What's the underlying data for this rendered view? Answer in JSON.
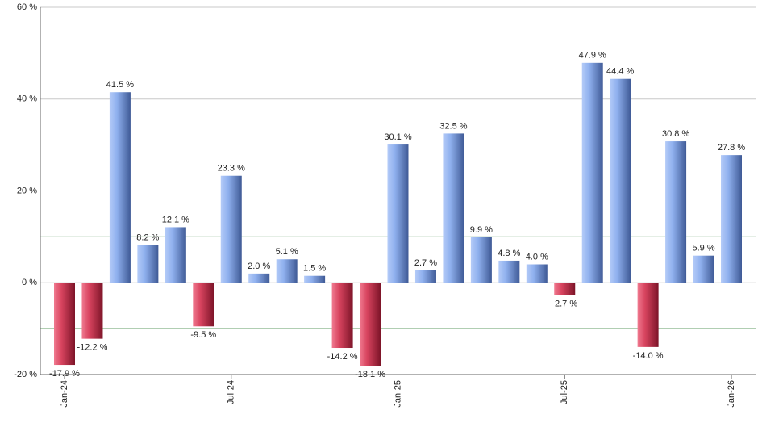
{
  "chart_data": {
    "type": "bar",
    "categories": [
      "Jan-24",
      null,
      null,
      null,
      null,
      null,
      "Jul-24",
      null,
      null,
      null,
      null,
      null,
      "Jan-25",
      null,
      null,
      null,
      null,
      null,
      "Jul-25",
      null,
      null,
      null,
      null,
      null,
      "Jan-26"
    ],
    "values": [
      -17.9,
      -12.2,
      41.5,
      8.2,
      12.1,
      -9.5,
      23.3,
      2.0,
      5.1,
      1.5,
      -14.2,
      -18.1,
      30.1,
      2.7,
      32.5,
      9.9,
      4.8,
      4.0,
      -2.7,
      47.9,
      44.4,
      -14.0,
      30.8,
      5.9,
      27.8
    ],
    "value_labels": [
      "-17.9 %",
      "-12.2 %",
      "41.5 %",
      "8.2 %",
      "12.1 %",
      "-9.5 %",
      "23.3 %",
      "2.0 %",
      "5.1 %",
      "1.5 %",
      "-14.2 %",
      "-18.1 %",
      "30.1 %",
      "2.7 %",
      "32.5 %",
      "9.9 %",
      "4.8 %",
      "4.0 %",
      "-2.7 %",
      "47.9 %",
      "44.4 %",
      "-14.0 %",
      "30.8 %",
      "5.9 %",
      "27.8 %"
    ],
    "ylim": [
      -20,
      60
    ],
    "yticks": [
      {
        "value": -20,
        "label": "-20 %"
      },
      {
        "value": 0,
        "label": "0 %"
      },
      {
        "value": 20,
        "label": "20 %"
      },
      {
        "value": 40,
        "label": "40 %"
      },
      {
        "value": 60,
        "label": "60 %"
      }
    ],
    "reference_lines": [
      10,
      -10
    ],
    "reference_color": "#2e7d32",
    "positive_color": "#7f9fe0",
    "negative_color": "#c8324f",
    "grid": true
  }
}
